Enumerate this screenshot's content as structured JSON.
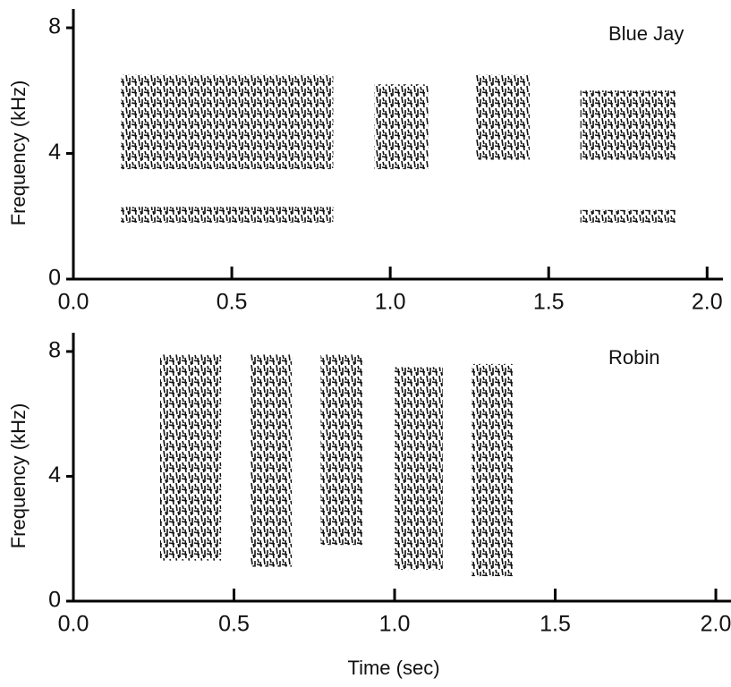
{
  "chart_data": [
    {
      "type": "spectrogram",
      "title": "Blue Jay",
      "y_label": "Frequency (kHz)",
      "color": "#111111",
      "xlim": [
        0,
        2.05
      ],
      "ylim": [
        0,
        8.6
      ],
      "xticks": [
        {
          "value": 0,
          "label": "0.0"
        },
        0.5,
        {
          "value": 1,
          "label": "1.0"
        },
        1.5,
        {
          "value": 2,
          "label": "2.0"
        }
      ],
      "yticks": [
        0,
        4,
        8
      ],
      "segments": [
        {
          "t0": 0.15,
          "t1": 0.82,
          "f0": 3.5,
          "f1": 6.5
        },
        {
          "t0": 0.95,
          "t1": 1.12,
          "f0": 3.5,
          "f1": 6.2
        },
        {
          "t0": 1.27,
          "t1": 1.44,
          "f0": 3.8,
          "f1": 6.5
        },
        {
          "t0": 1.6,
          "t1": 1.9,
          "f0": 3.8,
          "f1": 6.0
        },
        {
          "t0": 0.15,
          "t1": 0.82,
          "f0": 1.8,
          "f1": 2.3
        },
        {
          "t0": 1.6,
          "t1": 1.9,
          "f0": 1.8,
          "f1": 2.2
        }
      ]
    },
    {
      "type": "spectrogram",
      "title": "Robin",
      "y_label": "Frequency (kHz)",
      "x_label": "Time (sec)",
      "color": "#111111",
      "xlim": [
        0,
        2.05
      ],
      "ylim": [
        0,
        8.6
      ],
      "xticks": [
        {
          "value": 0,
          "label": "0.0"
        },
        0.5,
        {
          "value": 1,
          "label": "1.0"
        },
        1.5,
        {
          "value": 2,
          "label": "2.0"
        }
      ],
      "yticks": [
        0,
        4,
        8
      ],
      "segments": [
        {
          "t0": 0.27,
          "t1": 0.46,
          "f0": 1.3,
          "f1": 7.9
        },
        {
          "t0": 0.55,
          "t1": 0.68,
          "f0": 1.1,
          "f1": 7.9
        },
        {
          "t0": 0.77,
          "t1": 0.9,
          "f0": 1.8,
          "f1": 7.9
        },
        {
          "t0": 1.0,
          "t1": 1.15,
          "f0": 1.0,
          "f1": 7.5
        },
        {
          "t0": 1.24,
          "t1": 1.37,
          "f0": 0.8,
          "f1": 7.6
        }
      ]
    }
  ]
}
